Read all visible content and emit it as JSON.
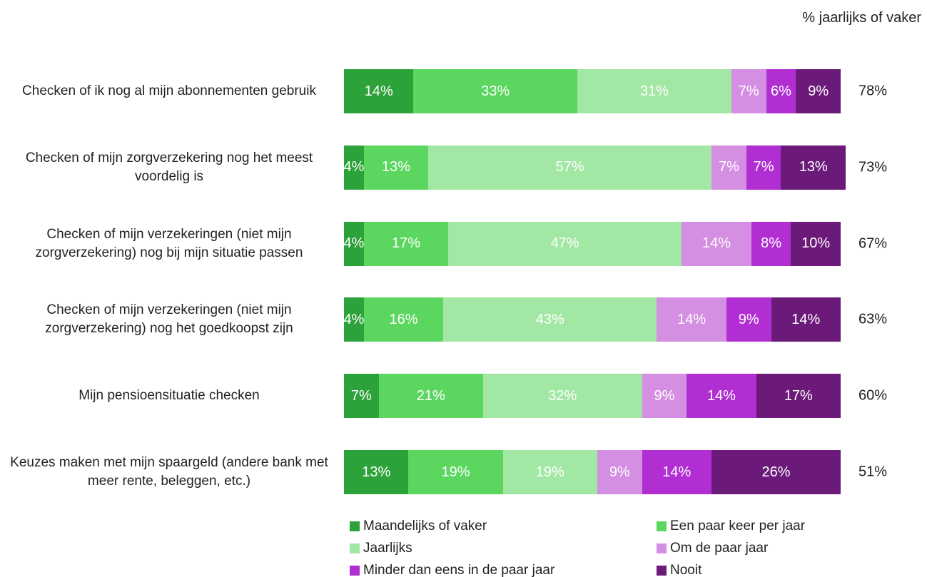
{
  "chart_data": {
    "type": "stacked-bar-horizontal",
    "categories": [
      "Checken of ik nog al mijn abonnementen gebruik",
      "Checken of mijn zorgverzekering nog het meest voordelig is",
      "Checken of mijn verzekeringen (niet mijn zorgverzekering) nog bij mijn situatie passen",
      "Checken of mijn verzekeringen (niet mijn zorgverzekering) nog het goedkoopst zijn",
      "Mijn pensioensituatie checken",
      "Keuzes maken met mijn spaargeld (andere bank met meer rente, beleggen, etc.)"
    ],
    "series": [
      {
        "name": "Maandelijks of vaker",
        "color": "#2ea23a",
        "values": [
          14,
          4,
          4,
          4,
          7,
          13
        ],
        "value_labels": [
          "14%",
          "4%",
          "4%",
          "4%",
          "7%",
          "13%"
        ]
      },
      {
        "name": "Een paar keer per jaar",
        "color": "#5bd65f",
        "values": [
          33,
          13,
          17,
          16,
          21,
          19
        ],
        "value_labels": [
          "33%",
          "13%",
          "17%",
          "16%",
          "21%",
          "19%"
        ]
      },
      {
        "name": "Jaarlijks",
        "color": "#a2e7a4",
        "values": [
          31,
          57,
          47,
          43,
          32,
          19
        ],
        "value_labels": [
          "31%",
          "57%",
          "47%",
          "43%",
          "32%",
          "19%"
        ]
      },
      {
        "name": "Om de paar jaar",
        "color": "#d48ee2",
        "values": [
          7,
          7,
          14,
          14,
          9,
          9
        ],
        "value_labels": [
          "7%",
          "7%",
          "14%",
          "14%",
          "9%",
          "9%"
        ]
      },
      {
        "name": "Minder dan eens in de paar jaar",
        "color": "#b12fd2",
        "values": [
          6,
          7,
          8,
          9,
          14,
          14
        ],
        "value_labels": [
          "6%",
          "7%",
          "8%",
          "9%",
          "14%",
          "14%"
        ]
      },
      {
        "name": "Nooit",
        "color": "#6b1a79",
        "values": [
          9,
          13,
          10,
          14,
          17,
          26
        ],
        "value_labels": [
          "9%",
          "13%",
          "10%",
          "14%",
          "17%",
          "26%"
        ]
      }
    ],
    "totals": {
      "label": "% jaarlijks of vaker",
      "values": [
        78,
        73,
        67,
        63,
        60,
        51
      ],
      "value_labels": [
        "78%",
        "73%",
        "67%",
        "63%",
        "60%",
        "51%"
      ]
    },
    "xlim": [
      0,
      100
    ]
  }
}
